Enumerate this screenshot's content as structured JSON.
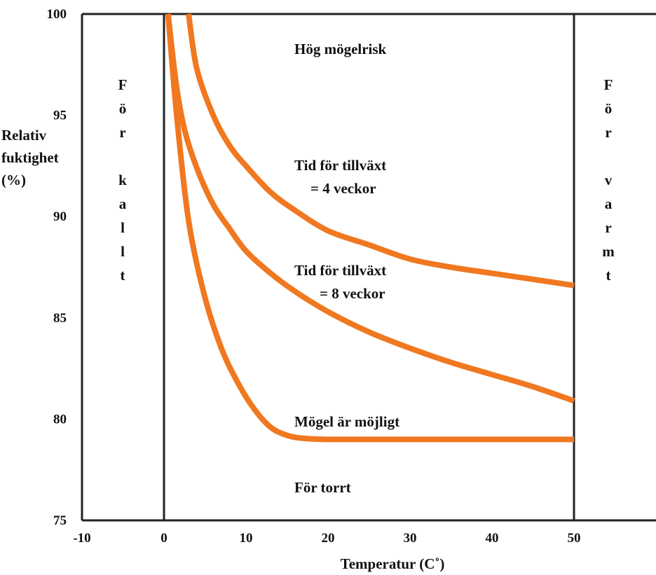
{
  "chart_data": {
    "type": "line",
    "title": "",
    "ylabel_lines": [
      "Relativ",
      "fuktighet",
      "(%)"
    ],
    "xlabel": "Temperatur (C˚)",
    "xlim": [
      -10,
      60
    ],
    "ylim": [
      75,
      100
    ],
    "x_ticks": [
      "-10",
      "0",
      "10",
      "20",
      "30",
      "40",
      "50"
    ],
    "y_ticks": [
      "75",
      "80",
      "85",
      "90",
      "95",
      "100"
    ],
    "grid": false,
    "line_color": "#F07820",
    "series": [
      {
        "x": [
          3,
          4,
          6,
          8,
          10,
          13,
          16,
          20,
          25,
          30,
          35,
          40,
          45,
          50
        ],
        "y": [
          100,
          97.3,
          95.0,
          93.5,
          92.5,
          91.2,
          90.3,
          89.3,
          88.6,
          87.9,
          87.5,
          87.2,
          86.9,
          86.6
        ]
      },
      {
        "x": [
          0.5,
          1.5,
          2.5,
          4,
          6,
          8,
          10,
          13,
          16,
          20,
          25,
          30,
          35,
          40,
          45,
          50
        ],
        "y": [
          100,
          96.5,
          94.3,
          92.4,
          90.6,
          89.4,
          88.3,
          87.2,
          86.3,
          85.3,
          84.3,
          83.5,
          82.8,
          82.2,
          81.6,
          80.9
        ]
      },
      {
        "x": [
          0.5,
          1.5,
          3,
          5,
          7,
          9,
          11,
          13,
          15,
          17,
          20,
          25,
          30,
          40,
          50
        ],
        "y": [
          100,
          95.2,
          89.8,
          86.0,
          83.5,
          81.8,
          80.5,
          79.6,
          79.2,
          79.05,
          79.0,
          79.0,
          79.0,
          79.0,
          79.0
        ]
      }
    ],
    "annotations": {
      "high_risk": "Hög mögelrisk",
      "weeks4_line1": "Tid för tillväxt",
      "weeks4_line2": "= 4 veckor",
      "weeks8_line1": "Tid för tillväxt",
      "weeks8_line2": "= 8 veckor",
      "possible": "Mögel är möjligt",
      "too_dry": "För torrt",
      "too_cold": [
        "F",
        "ö",
        "r",
        "",
        "k",
        "a",
        "l",
        "l",
        "t"
      ],
      "too_warm": [
        "F",
        "ö",
        "r",
        "",
        "v",
        "a",
        "r",
        "m",
        "t"
      ]
    }
  }
}
